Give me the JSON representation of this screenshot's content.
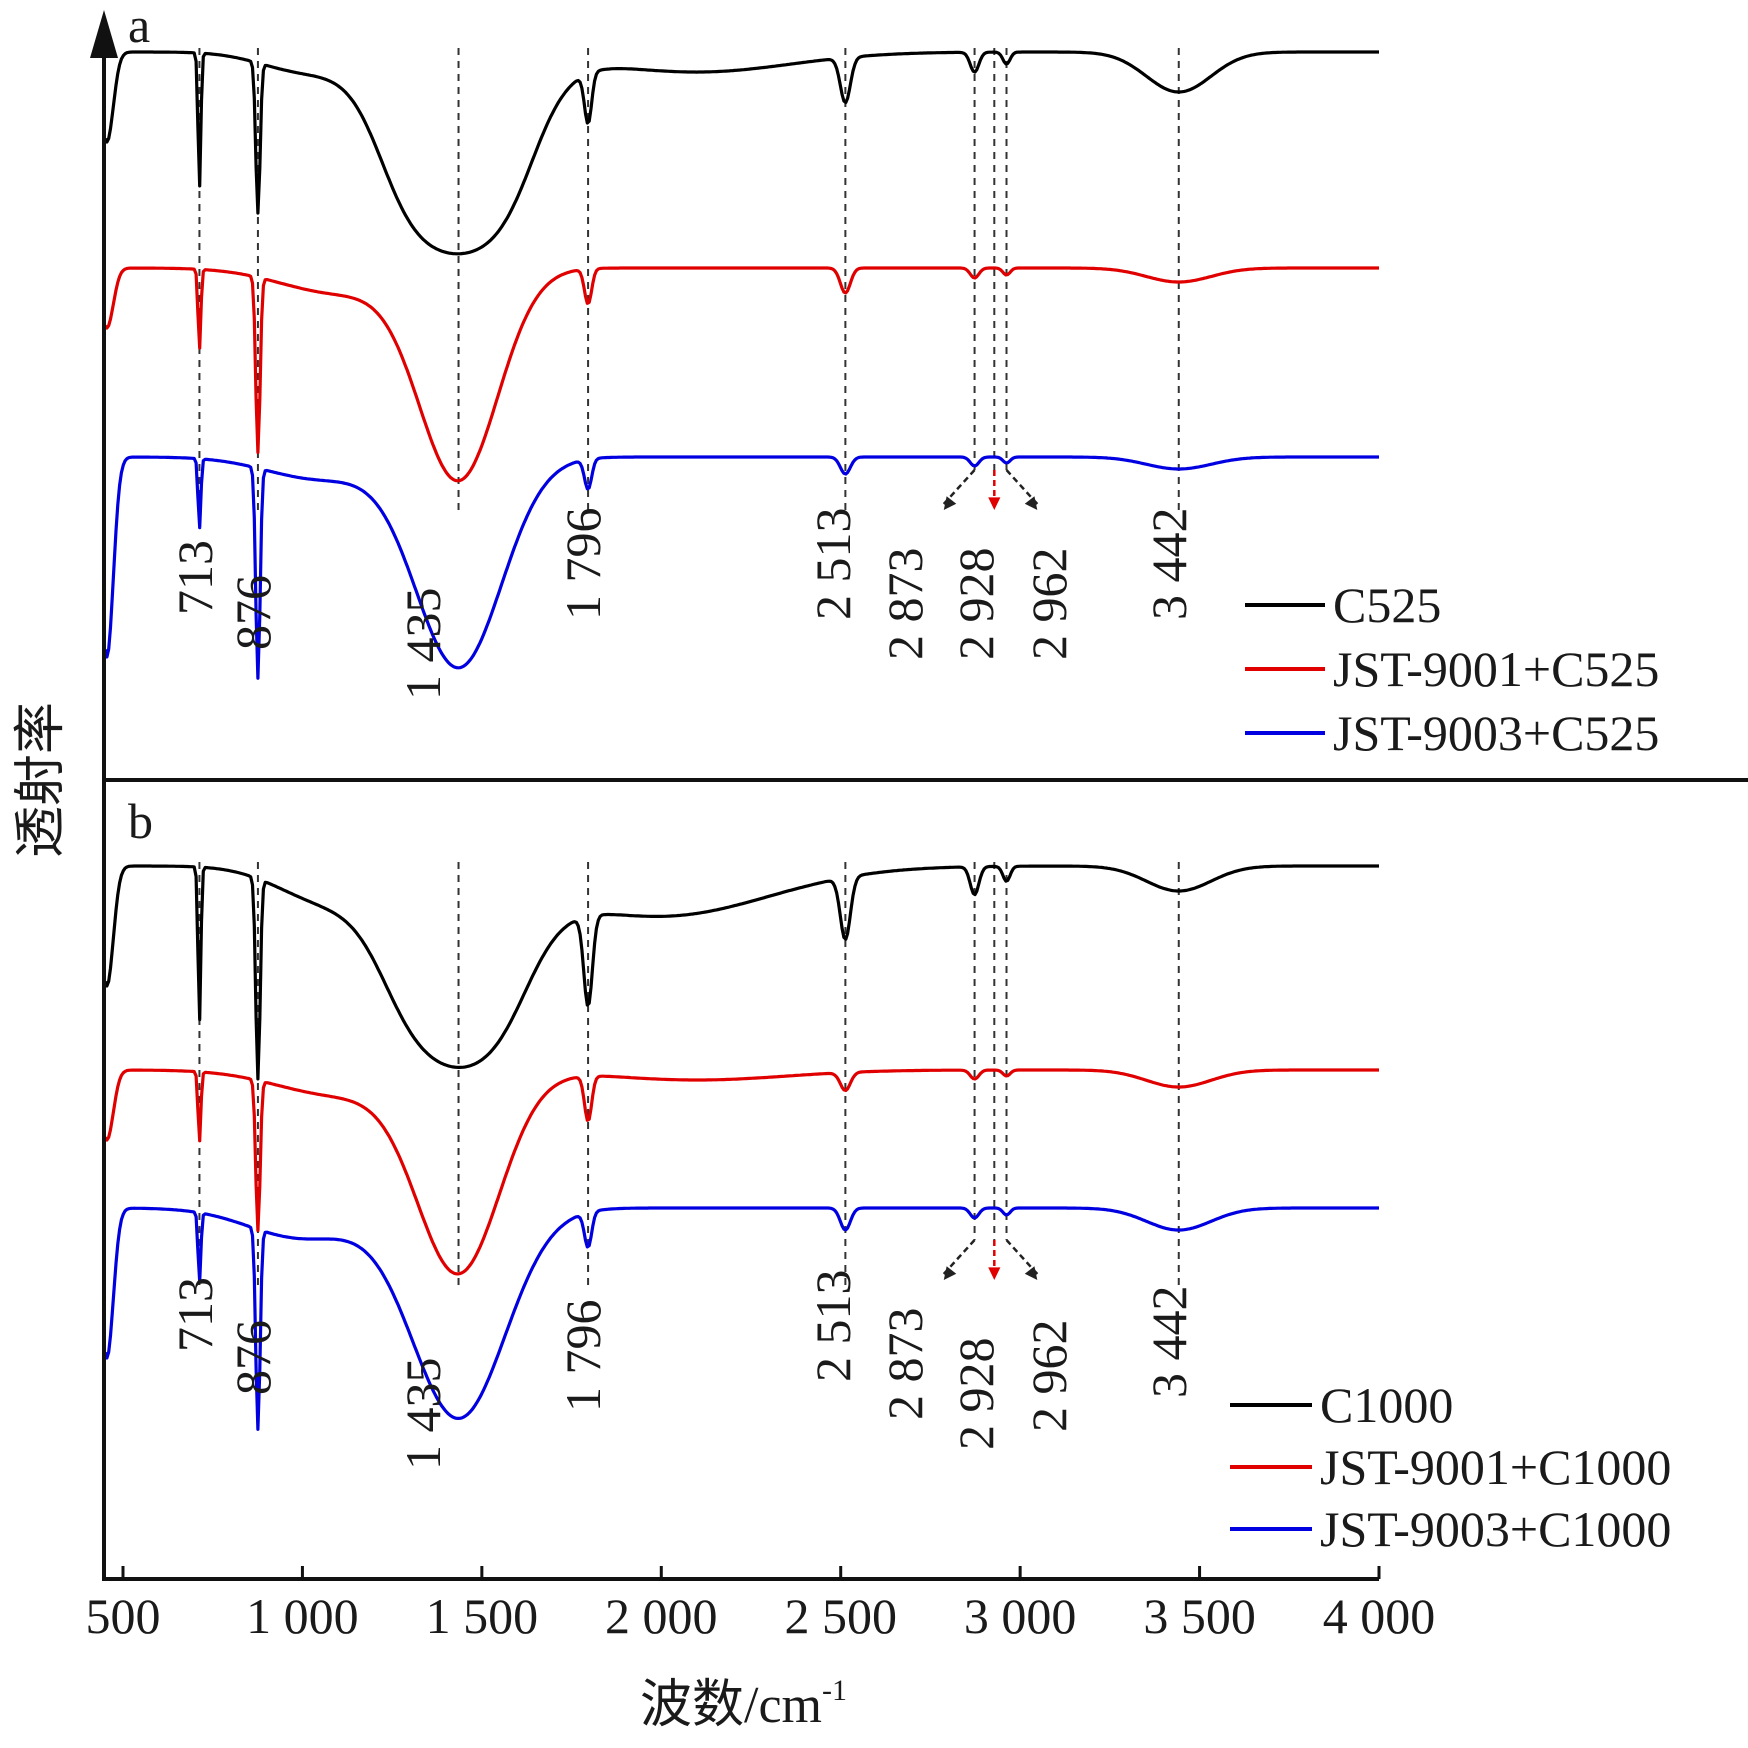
{
  "chart_data": {
    "type": "line",
    "xlabel": "波数/cm",
    "xlabel_sup": "-1",
    "ylabel": "透射率",
    "xlim": [
      450,
      4000
    ],
    "x_ticks": [
      {
        "value": 500,
        "label": "500"
      },
      {
        "value": 1000,
        "label": "1 000"
      },
      {
        "value": 1500,
        "label": "1 500"
      },
      {
        "value": 2000,
        "label": "2 000"
      },
      {
        "value": 2500,
        "label": "2 500"
      },
      {
        "value": 3000,
        "label": "3 000"
      },
      {
        "value": 3500,
        "label": "3 500"
      },
      {
        "value": 4000,
        "label": "4 000"
      }
    ],
    "peaks": [
      713,
      876,
      1435,
      1796,
      2513,
      2873,
      2928,
      2962,
      3442
    ],
    "panels": [
      {
        "letter": "a",
        "peak_labels": [
          "713",
          "876",
          "1 435",
          "1 796",
          "2 513",
          "2 873",
          "2 928",
          "2 962",
          "3 442"
        ],
        "series": [
          {
            "name": "C525",
            "color": "#000000"
          },
          {
            "name": "JST-9001+C525",
            "color": "#e00000"
          },
          {
            "name": "JST-9003+C525",
            "color": "#0000e0"
          }
        ]
      },
      {
        "letter": "b",
        "peak_labels": [
          "713",
          "876",
          "1 435",
          "1 796",
          "2 513",
          "2 873",
          "2 928",
          "2 962",
          "3 442"
        ],
        "series": [
          {
            "name": "C1000",
            "color": "#000000"
          },
          {
            "name": "JST-9001+C1000",
            "color": "#e00000"
          },
          {
            "name": "JST-9003+C1000",
            "color": "#0000e0"
          }
        ]
      }
    ]
  }
}
